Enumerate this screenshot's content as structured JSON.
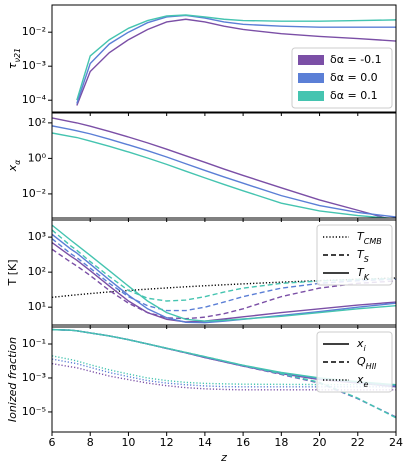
{
  "chart_data": [
    {
      "type": "line",
      "log": true,
      "ylabel": "τ",
      "ylabel_sub": "ν21",
      "legend_loc": "lower right",
      "x": [
        6,
        7,
        7.3,
        8,
        9,
        10,
        11,
        12,
        13,
        14,
        15,
        16,
        18,
        20,
        22,
        24
      ],
      "xlim": [
        6,
        24
      ],
      "ylim": [
        4.5e-05,
        0.063
      ],
      "yticks": [
        {
          "value": 0.0001,
          "label": "10⁻⁴"
        },
        {
          "value": 0.001,
          "label": "10⁻³"
        },
        {
          "value": 0.01,
          "label": "10⁻²"
        }
      ],
      "series": [
        {
          "name": "δα = -0.1",
          "color": "#7b4fa6",
          "style": "solid",
          "values": [
            null,
            null,
            7e-05,
            0.0007,
            0.0025,
            0.006,
            0.012,
            0.02,
            0.024,
            0.02,
            0.015,
            0.012,
            0.009,
            0.0075,
            0.0065,
            0.0055
          ]
        },
        {
          "name": "δα = 0.0",
          "color": "#5b7fd6",
          "style": "solid",
          "values": [
            null,
            null,
            8e-05,
            0.0012,
            0.0045,
            0.01,
            0.019,
            0.028,
            0.031,
            0.026,
            0.02,
            0.017,
            0.015,
            0.014,
            0.014,
            0.014
          ]
        },
        {
          "name": "δα = 0.1",
          "color": "#45c4b0",
          "style": "solid",
          "values": [
            null,
            null,
            0.0001,
            0.002,
            0.006,
            0.013,
            0.022,
            0.03,
            0.032,
            0.028,
            0.024,
            0.022,
            0.021,
            0.021,
            0.022,
            0.023
          ]
        }
      ]
    },
    {
      "type": "line",
      "log": true,
      "ylabel": "x",
      "ylabel_sub": "α",
      "x": [
        6,
        7,
        7.3,
        8,
        9,
        10,
        11,
        12,
        13,
        14,
        15,
        16,
        18,
        20,
        22,
        24
      ],
      "xlim": [
        6,
        24
      ],
      "ylim": [
        0.00044,
        360
      ],
      "yticks": [
        {
          "value": 0.01,
          "label": "10⁻²"
        },
        {
          "value": 1,
          "label": "10⁰"
        },
        {
          "value": 100,
          "label": "10²"
        }
      ],
      "series": [
        {
          "color": "#7b4fa6",
          "style": "solid",
          "values": [
            190,
            115,
            100,
            65,
            33,
            16,
            7.5,
            3.3,
            1.4,
            0.6,
            0.25,
            0.11,
            0.022,
            0.0046,
            0.0012,
            0.0003
          ]
        },
        {
          "color": "#5b7fd6",
          "style": "solid",
          "values": [
            68,
            42,
            36,
            24,
            12,
            5.8,
            2.7,
            1.2,
            0.5,
            0.21,
            0.09,
            0.04,
            0.008,
            0.0022,
            0.0009,
            0.0005
          ]
        },
        {
          "color": "#45c4b0",
          "style": "solid",
          "values": [
            27,
            17,
            15,
            9.5,
            4.8,
            2.3,
            1.05,
            0.46,
            0.19,
            0.08,
            0.034,
            0.015,
            0.003,
            0.0011,
            0.0006,
            0.0004
          ]
        }
      ]
    },
    {
      "type": "line",
      "log": true,
      "ylabel": "T [K]",
      "legend_loc": "upper right",
      "x": [
        6,
        7,
        7.3,
        8,
        9,
        10,
        11,
        12,
        13,
        14,
        15,
        16,
        18,
        20,
        22,
        24
      ],
      "xlim": [
        6,
        24
      ],
      "ylim": [
        3.1,
        3080
      ],
      "yticks": [
        {
          "value": 10,
          "label": "10¹"
        },
        {
          "value": 100,
          "label": "10²"
        },
        {
          "value": 1000,
          "label": "10³"
        }
      ],
      "legend": [
        {
          "label": "T",
          "sub": "CMB",
          "style": "dotted"
        },
        {
          "label": "T",
          "sub": "S",
          "style": "dashed"
        },
        {
          "label": "T",
          "sub": "K",
          "style": "solid"
        }
      ],
      "series": [
        {
          "color": "#000000",
          "style": "dotted",
          "values": [
            19.1,
            21.8,
            22.6,
            24.5,
            27.3,
            30.0,
            32.7,
            35.4,
            38.2,
            40.9,
            43.6,
            46.3,
            51.8,
            57.2,
            62.7,
            68.1
          ]
        },
        {
          "color": "#7b4fa6",
          "style": "dashed",
          "values": [
            450,
            190,
            150,
            80,
            30,
            13,
            7,
            5,
            4.7,
            5.2,
            6.5,
            9,
            20,
            35,
            48,
            56
          ]
        },
        {
          "color": "#5b7fd6",
          "style": "dashed",
          "values": [
            900,
            330,
            260,
            130,
            48,
            20,
            11,
            8,
            8,
            10,
            14,
            20,
            35,
            48,
            57,
            63
          ]
        },
        {
          "color": "#45c4b0",
          "style": "dashed",
          "values": [
            1600,
            550,
            420,
            200,
            75,
            30,
            18,
            15,
            16,
            20,
            27,
            35,
            48,
            56,
            62,
            66
          ]
        },
        {
          "color": "#7b4fa6",
          "style": "solid",
          "values": [
            700,
            280,
            220,
            110,
            40,
            15,
            7,
            4.5,
            3.8,
            4,
            4.6,
            5.3,
            7,
            9,
            11.5,
            14
          ]
        },
        {
          "color": "#5b7fd6",
          "style": "solid",
          "values": [
            1200,
            450,
            350,
            170,
            60,
            22,
            9,
            5,
            3.7,
            3.6,
            4,
            4.5,
            5.8,
            7.5,
            10,
            13
          ]
        },
        {
          "color": "#45c4b0",
          "style": "solid",
          "values": [
            2200,
            800,
            600,
            300,
            110,
            40,
            15,
            7,
            4.5,
            4,
            4.2,
            4.6,
            5.5,
            7,
            9,
            11
          ]
        }
      ]
    },
    {
      "type": "line",
      "log": true,
      "ylabel": "Ionized fraction",
      "legend_loc": "upper right",
      "xlabel": "z",
      "x": [
        6,
        7,
        7.3,
        8,
        9,
        10,
        11,
        12,
        13,
        14,
        15,
        16,
        18,
        20,
        22,
        24
      ],
      "xlim": [
        6,
        24
      ],
      "xticks": [
        6,
        8,
        10,
        12,
        14,
        16,
        18,
        20,
        22,
        24
      ],
      "ylim": [
        6.6e-07,
        1.0
      ],
      "yticks": [
        {
          "value": 1e-05,
          "label": "10⁻⁵"
        },
        {
          "value": 0.001,
          "label": "10⁻³"
        },
        {
          "value": 0.1,
          "label": "10⁻¹"
        }
      ],
      "legend": [
        {
          "label": "x",
          "sub": "i",
          "style": "solid"
        },
        {
          "label": "Q",
          "sub": "HII",
          "style": "dashed"
        },
        {
          "label": "x",
          "sub": "e",
          "style": "dotted"
        }
      ],
      "series": [
        {
          "color": "#7b4fa6",
          "style": "solid",
          "values": [
            0.7,
            0.65,
            0.6,
            0.45,
            0.3,
            0.18,
            0.1,
            0.055,
            0.03,
            0.016,
            0.009,
            0.005,
            0.0018,
            0.0008,
            0.0005,
            0.0003
          ]
        },
        {
          "color": "#5b7fd6",
          "style": "solid",
          "values": [
            0.7,
            0.65,
            0.6,
            0.45,
            0.3,
            0.18,
            0.1,
            0.056,
            0.031,
            0.017,
            0.0095,
            0.0053,
            0.002,
            0.0009,
            0.00055,
            0.00035
          ]
        },
        {
          "color": "#45c4b0",
          "style": "solid",
          "values": [
            0.7,
            0.65,
            0.6,
            0.45,
            0.3,
            0.18,
            0.1,
            0.057,
            0.032,
            0.018,
            0.01,
            0.0056,
            0.0021,
            0.001,
            0.0006,
            0.0004
          ]
        },
        {
          "color": "#7b4fa6",
          "style": "dashed",
          "values": [
            0.7,
            0.65,
            0.6,
            0.45,
            0.3,
            0.18,
            0.1,
            0.055,
            0.03,
            0.016,
            0.009,
            0.005,
            0.0016,
            0.0005,
            6e-05,
            5e-06
          ]
        },
        {
          "color": "#5b7fd6",
          "style": "dashed",
          "values": [
            0.7,
            0.65,
            0.6,
            0.45,
            0.3,
            0.18,
            0.1,
            0.056,
            0.031,
            0.017,
            0.0095,
            0.0053,
            0.0017,
            0.00052,
            6.2e-05,
            4.8e-06
          ]
        },
        {
          "color": "#45c4b0",
          "style": "dashed",
          "values": [
            0.7,
            0.65,
            0.6,
            0.45,
            0.3,
            0.18,
            0.1,
            0.057,
            0.032,
            0.018,
            0.01,
            0.0056,
            0.0018,
            0.00055,
            6.5e-05,
            4.5e-06
          ]
        },
        {
          "color": "#7b4fa6",
          "style": "dotted",
          "values": [
            0.007,
            0.0045,
            0.004,
            0.0025,
            0.0013,
            0.0008,
            0.0005,
            0.00035,
            0.00027,
            0.00023,
            0.00021,
            0.0002,
            0.0002,
            0.0002,
            0.0002,
            0.0002
          ]
        },
        {
          "color": "#5b7fd6",
          "style": "dotted",
          "values": [
            0.013,
            0.008,
            0.007,
            0.0042,
            0.0021,
            0.0012,
            0.0007,
            0.0005,
            0.0004,
            0.00034,
            0.00031,
            0.0003,
            0.0003,
            0.0003,
            0.0003,
            0.0003
          ]
        },
        {
          "color": "#45c4b0",
          "style": "dotted",
          "values": [
            0.02,
            0.012,
            0.01,
            0.006,
            0.003,
            0.0017,
            0.001,
            0.0007,
            0.00055,
            0.00048,
            0.00045,
            0.00043,
            0.00042,
            0.00041,
            0.0004,
            0.0004
          ]
        }
      ]
    }
  ]
}
